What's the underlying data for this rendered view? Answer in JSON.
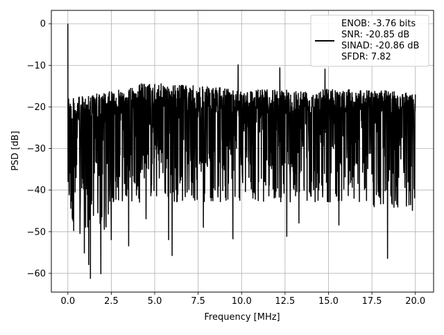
{
  "chart_data": {
    "type": "line",
    "title": "",
    "xlabel": "Frequency [MHz]",
    "ylabel": "PSD [dB]",
    "xlim": [
      -0.95,
      21.05
    ],
    "ylim": [
      -64.5,
      3.2
    ],
    "x_ticks": [
      0.0,
      2.5,
      5.0,
      7.5,
      10.0,
      12.5,
      15.0,
      17.5,
      20.0
    ],
    "x_tick_labels": [
      "0.0",
      "2.5",
      "5.0",
      "7.5",
      "10.0",
      "12.5",
      "15.0",
      "17.5",
      "20.0"
    ],
    "y_ticks": [
      0,
      -10,
      -20,
      -30,
      -40,
      -50,
      -60
    ],
    "y_tick_labels": [
      "0",
      "−10",
      "−20",
      "−30",
      "−40",
      "−50",
      "−60"
    ],
    "grid": true,
    "legend_position": "top-right",
    "legend": {
      "lines": [
        "ENOB: -3.76 bits",
        "SNR: -20.85 dB",
        "SINAD: -20.86 dB",
        "SFDR: 7.82"
      ]
    },
    "series": [
      {
        "color": "#000000",
        "description_points": [
          [
            0.0,
            0.0
          ],
          [
            0.02,
            -38
          ],
          [
            0.05,
            -18
          ],
          [
            0.3,
            -47.5
          ],
          [
            0.7,
            -50.5
          ],
          [
            0.95,
            -55.2
          ],
          [
            1.2,
            -58
          ],
          [
            1.3,
            -61.3
          ],
          [
            1.9,
            -60.2
          ],
          [
            2.1,
            -49.5
          ],
          [
            2.5,
            -52
          ],
          [
            3.5,
            -53.5
          ],
          [
            4.5,
            -47
          ],
          [
            5.8,
            -52
          ],
          [
            6.0,
            -55.8
          ],
          [
            7.8,
            -49
          ],
          [
            9.5,
            -51.8
          ],
          [
            12.6,
            -51.2
          ],
          [
            13.3,
            -48
          ],
          [
            15.6,
            -48.5
          ],
          [
            18.4,
            -56.5
          ],
          [
            9.8,
            -9.8
          ],
          [
            12.2,
            -10.5
          ],
          [
            14.8,
            -10.8
          ],
          [
            20.0,
            -17
          ]
        ]
      }
    ]
  }
}
